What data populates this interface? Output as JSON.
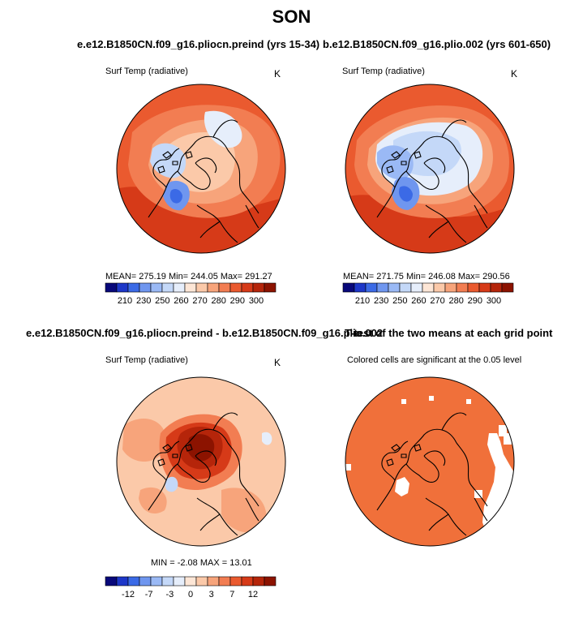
{
  "main_title": "SON",
  "colors": {
    "scale": [
      "#08087a",
      "#1d37c8",
      "#3b6ae6",
      "#6f96ef",
      "#9ab9f5",
      "#c4d8f8",
      "#e6eefb",
      "#fde6d6",
      "#fbc9a9",
      "#f7a47b",
      "#f27d52",
      "#ea5a2f",
      "#d63a18",
      "#b5250a",
      "#8c1300"
    ],
    "land_outline": "#000000",
    "significant": "#f0703a"
  },
  "panels": {
    "p1": {
      "title": "e.e12.B1850CN.f09_g16.pliocn.preind (yrs 15-34)",
      "variable": "Surf Temp (radiative)",
      "unit": "K",
      "stats": "MEAN= 275.19   Min= 244.05   Max= 291.27",
      "colorbar_ticks": [
        "210",
        "230",
        "250",
        "260",
        "270",
        "280",
        "290",
        "300"
      ]
    },
    "p2": {
      "title": "b.e12.B1850CN.f09_g16.plio.002 (yrs 601-650)",
      "variable": "Surf Temp (radiative)",
      "unit": "K",
      "stats": "MEAN= 271.75   Min= 246.08   Max= 290.56",
      "colorbar_ticks": [
        "210",
        "230",
        "250",
        "260",
        "270",
        "280",
        "290",
        "300"
      ]
    },
    "p3": {
      "title": "e.e12.B1850CN.f09_g16.pliocn.preind - b.e12.B1850CN.f09_g16.plio.002",
      "variable": "Surf Temp (radiative)",
      "unit": "K",
      "stats": "MIN =  -2.08  MAX =  13.01",
      "colorbar_ticks": [
        "-12",
        "-7",
        "-3",
        "0",
        "3",
        "7",
        "12"
      ]
    },
    "p4": {
      "title": "T-test of the two means at each grid point",
      "variable": "Colored cells are significant at the 0.05 level"
    }
  },
  "chart_data": [
    {
      "type": "heatmap",
      "title": "e.e12.B1850CN.f09_g16.pliocn.preind (yrs 15-34)",
      "variable": "Surf Temp (radiative)",
      "units": "K",
      "projection": "north polar stereographic",
      "mean": 275.19,
      "min": 244.05,
      "max": 291.27,
      "color_levels": [
        210,
        220,
        230,
        240,
        250,
        255,
        260,
        265,
        270,
        275,
        280,
        285,
        290,
        295,
        300
      ]
    },
    {
      "type": "heatmap",
      "title": "b.e12.B1850CN.f09_g16.plio.002 (yrs 601-650)",
      "variable": "Surf Temp (radiative)",
      "units": "K",
      "projection": "north polar stereographic",
      "mean": 271.75,
      "min": 246.08,
      "max": 290.56,
      "color_levels": [
        210,
        220,
        230,
        240,
        250,
        255,
        260,
        265,
        270,
        275,
        280,
        285,
        290,
        295,
        300
      ]
    },
    {
      "type": "heatmap",
      "title": "e.e12.B1850CN.f09_g16.pliocn.preind - b.e12.B1850CN.f09_g16.plio.002",
      "variable": "Surf Temp (radiative)",
      "units": "K",
      "projection": "north polar stereographic",
      "min": -2.08,
      "max": 13.01,
      "color_levels": [
        -12,
        -10,
        -7,
        -5,
        -3,
        -1,
        0,
        1,
        3,
        5,
        7,
        10,
        12
      ]
    },
    {
      "type": "heatmap",
      "title": "T-test of the two means at each grid point",
      "note": "Colored cells are significant at the 0.05 level",
      "projection": "north polar stereographic",
      "significance_level": 0.05
    }
  ]
}
